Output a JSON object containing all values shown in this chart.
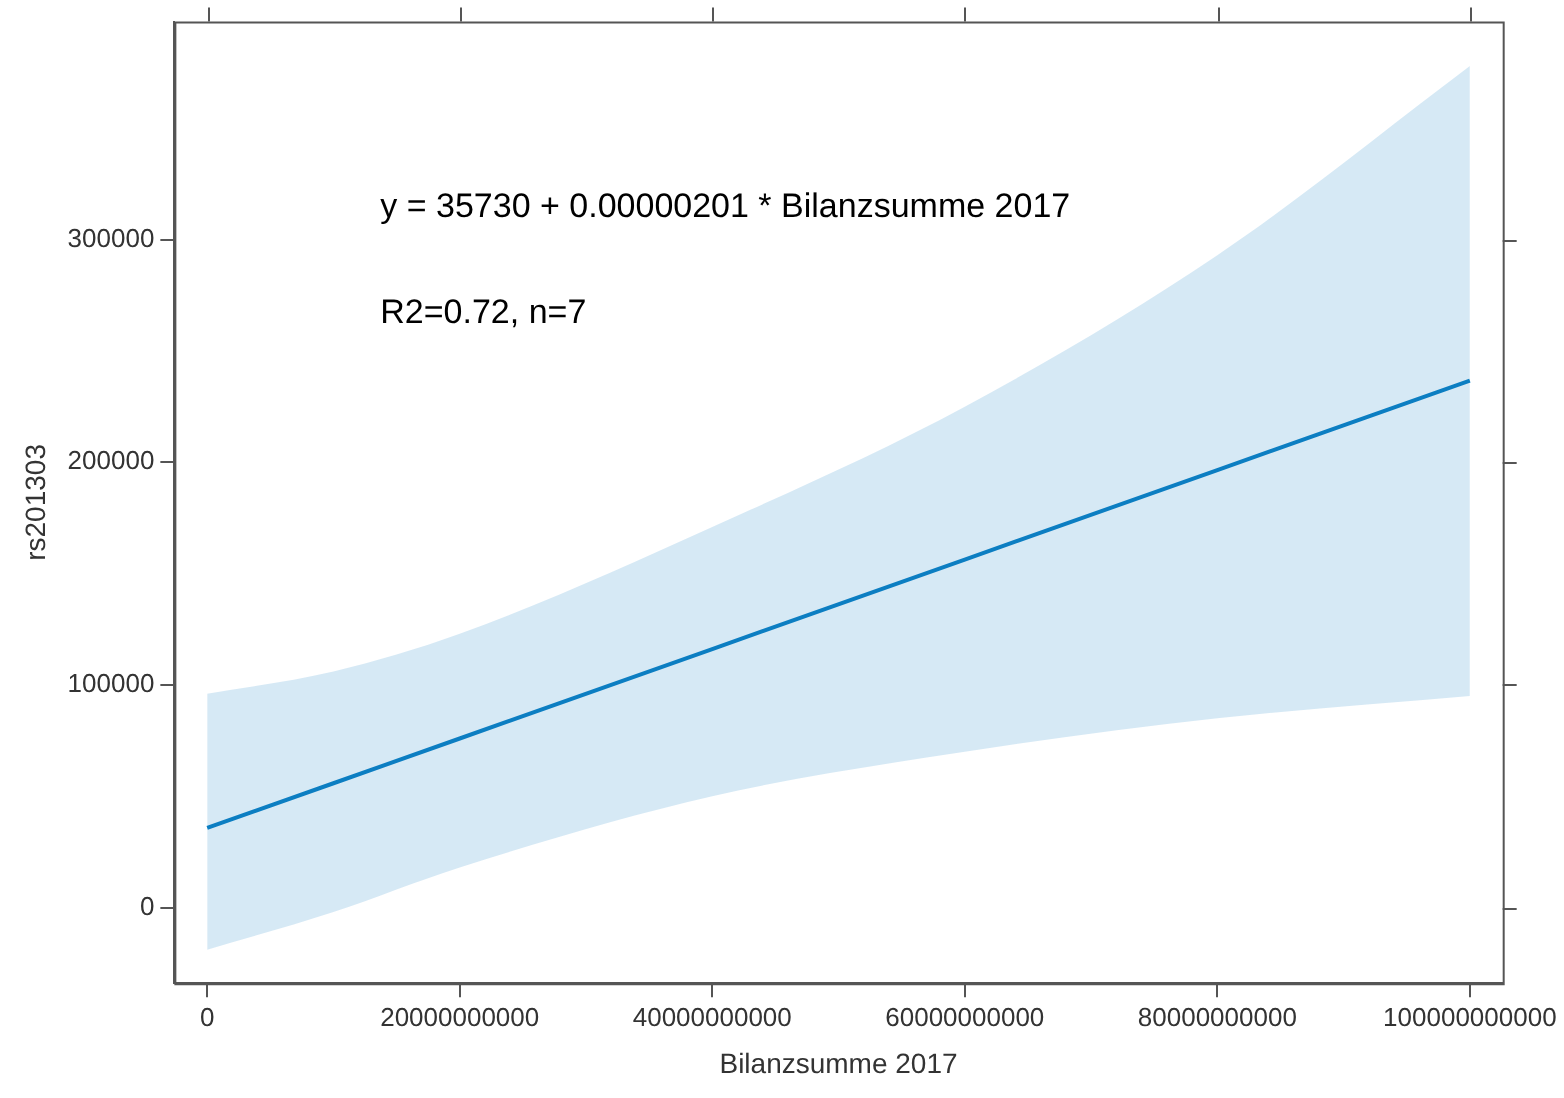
{
  "chart_data": {
    "type": "line",
    "xlabel": "Bilanzsumme 2017",
    "ylabel": "rs201303",
    "annotations": [
      "y = 35730 + 0.00000201 * Bilanzsumme 2017",
      "R2=0.72, n=7"
    ],
    "x": [
      0,
      10000000000,
      20000000000,
      40000000000,
      60000000000,
      80000000000,
      100000000000
    ],
    "series": [
      {
        "color": "#0d7fc2",
        "values": [
          35730,
          55830,
          75930,
          116130,
          156330,
          196530,
          236730
        ],
        "lower": [
          -19000,
          -2000,
          18000,
          50000,
          70000,
          85000,
          95000
        ],
        "upper": [
          96000,
          106000,
          123000,
          171000,
          225000,
          293000,
          378000
        ]
      }
    ],
    "xlim": [
      -2600000000,
      102600000000
    ],
    "xticks": [
      0,
      20000000000,
      40000000000,
      60000000000,
      80000000000,
      100000000000
    ],
    "ylim": [
      -34000,
      398000
    ],
    "yticks": [
      0,
      100000,
      200000,
      300000
    ],
    "grid": false,
    "legend": false,
    "marker": "none",
    "line_style": "solid"
  }
}
